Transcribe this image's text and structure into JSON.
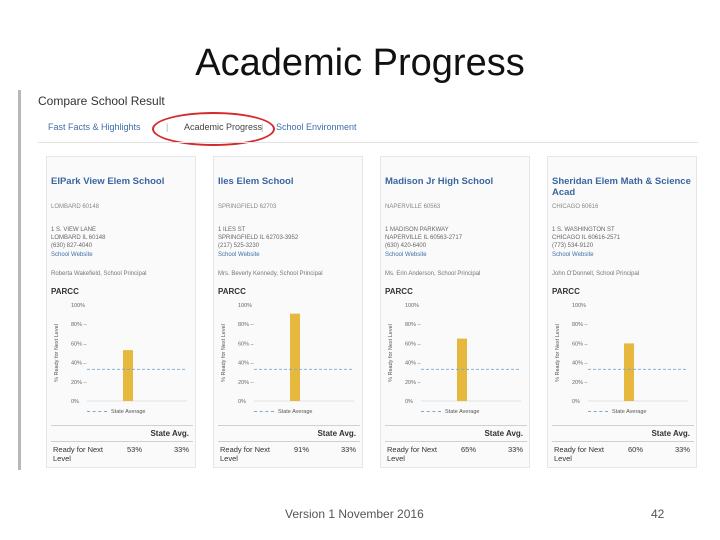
{
  "slide": {
    "title": "Academic Progress",
    "footer": "Version 1 November 2016",
    "page_number": "42"
  },
  "screenshot": {
    "title": "Compare School Result",
    "tabs": [
      {
        "label": "Fast Facts & Highlights",
        "active": false
      },
      {
        "label": "Academic Progress",
        "active": true,
        "highlighted": true
      },
      {
        "label": "School Environment",
        "active": false
      }
    ],
    "highlight_color": "#d42a2a",
    "bar_color": "#e6b83d",
    "state_line_color": "#7aa8d0",
    "schools": [
      {
        "name": "ElPark View Elem School",
        "id": "LOMBARD 60148",
        "address": [
          "1 S. VIEW LANE",
          "LOMBARD IL 60148",
          "(630) 827-4040"
        ],
        "website": "School Website",
        "principal": "Roberta Wakefield, School Principal",
        "section": "PARCC",
        "chart": {
          "yticks": [
            "100%",
            "80%",
            "60%",
            "40%",
            "20%",
            "0%"
          ],
          "ylabel": "% Ready for Next Level",
          "value": 53,
          "state_avg": 33,
          "legend": "State Average"
        },
        "state_avg_header": "State Avg.",
        "row_label": "Ready for Next Level",
        "school_pct": "53%",
        "state_pct": "33%"
      },
      {
        "name": "Iles Elem School",
        "id": "SPRINGFIELD 62703",
        "address": [
          "1 ILES ST",
          "SPRINGFIELD IL 62703-3952",
          "(217) 525-3230"
        ],
        "website": "School Website",
        "principal": "Mrs. Beverly Kennedy, School Principal",
        "section": "PARCC",
        "chart": {
          "yticks": [
            "100%",
            "80%",
            "60%",
            "40%",
            "20%",
            "0%"
          ],
          "ylabel": "% Ready for Next Level",
          "value": 91,
          "state_avg": 33,
          "legend": "State Average"
        },
        "state_avg_header": "State Avg.",
        "row_label": "Ready for Next Level",
        "school_pct": "91%",
        "state_pct": "33%"
      },
      {
        "name": "Madison Jr High School",
        "id": "NAPERVILLE 60563",
        "address": [
          "1 MADISON PARKWAY",
          "NAPERVILLE IL 60563-2717",
          "(630) 420-6400"
        ],
        "website": "School Website",
        "principal": "Ms. Erin Anderson, School Principal",
        "section": "PARCC",
        "chart": {
          "yticks": [
            "100%",
            "80%",
            "60%",
            "40%",
            "20%",
            "0%"
          ],
          "ylabel": "% Ready for Next Level",
          "value": 65,
          "state_avg": 33,
          "legend": "State Average"
        },
        "state_avg_header": "State Avg.",
        "row_label": "Ready for Next Level",
        "school_pct": "65%",
        "state_pct": "33%"
      },
      {
        "name": "Sheridan Elem Math & Science Acad",
        "id": "CHICAGO 60616",
        "address": [
          "1 S. WASHINGTON ST",
          "CHICAGO IL 60616-2571",
          "(773) 534-9120"
        ],
        "website": "School Website",
        "principal": "John O'Donnell, School Principal",
        "section": "PARCC",
        "chart": {
          "yticks": [
            "100%",
            "80%",
            "60%",
            "40%",
            "20%",
            "0%"
          ],
          "ylabel": "% Ready for Next Level",
          "value": 60,
          "state_avg": 33,
          "legend": "State Average"
        },
        "state_avg_header": "State Avg.",
        "row_label": "Ready for Next Level",
        "school_pct": "60%",
        "state_pct": "33%"
      }
    ]
  }
}
